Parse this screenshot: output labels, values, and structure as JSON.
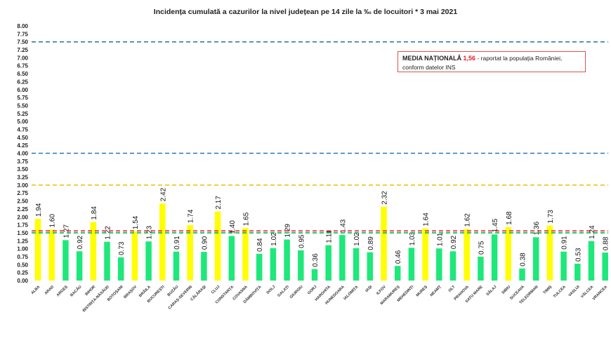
{
  "chart_data": {
    "type": "bar",
    "title": "Incidența cumulată a cazurilor la nivel județean pe 14 zile la ‰ de locuitori *   3 mai 2021",
    "xlabel": "",
    "ylabel": "",
    "ylim": [
      0,
      8
    ],
    "ytick_step": 0.25,
    "grid": false,
    "categories": [
      "ALBA",
      "ARAD",
      "ARGEȘ",
      "BACĂU",
      "BIHOR",
      "BISTRIȚA-NĂSĂUD",
      "BOTOȘANI",
      "BRAȘOV",
      "BRĂILA",
      "BUCUREȘTI",
      "BUZĂU",
      "CARAȘ-SEVERIN",
      "CĂLĂRAȘI",
      "CLUJ",
      "CONSTANȚA",
      "COVASNA",
      "DÂMBOVIȚA",
      "DOLJ",
      "GALAȚI",
      "GIURGIU",
      "GORJ",
      "HARGHITA",
      "HUNEDOARA",
      "IALOMIȚA",
      "IAȘI",
      "ILFOV",
      "MARAMUREȘ",
      "MEHEDINȚI",
      "MUREȘ",
      "NEAMȚ",
      "OLT",
      "PRAHOVA",
      "SATU MARE",
      "SĂLAJ",
      "SIBIU",
      "SUCEAVA",
      "TELEORMAN",
      "TIMIȘ",
      "TULCEA",
      "VASLUI",
      "VÂLCEA",
      "VRANCEA"
    ],
    "values": [
      1.94,
      1.6,
      1.27,
      0.92,
      1.84,
      1.22,
      0.73,
      1.54,
      1.23,
      2.42,
      0.91,
      1.74,
      0.9,
      2.17,
      1.4,
      1.65,
      0.84,
      1.02,
      1.29,
      0.95,
      0.36,
      1.11,
      1.43,
      1.02,
      0.89,
      2.32,
      0.46,
      1.03,
      1.64,
      1.01,
      0.92,
      1.62,
      0.75,
      1.45,
      1.68,
      0.38,
      1.36,
      1.73,
      0.91,
      0.53,
      1.24,
      0.88
    ],
    "value_labels": [
      "1.94",
      "1.60",
      "1.27",
      "0.92",
      "1.84",
      "1.22",
      "0.73",
      "1.54",
      "1.23",
      "2.42",
      "0.91",
      "1.74",
      "0.90",
      "2.17",
      "1.40",
      "1.65",
      "0.84",
      "1.02",
      "1.29",
      "0.95",
      "0.36",
      "1.11",
      "1.43",
      "1.02",
      "0.89",
      "2.32",
      "0.46",
      "1.03",
      "1.64",
      "1.01",
      "0.92",
      "1.62",
      "0.75",
      "1.45",
      "1.68",
      "0.38",
      "1.36",
      "1.73",
      "0.91",
      "0.53",
      "1.24",
      "0.88"
    ],
    "color_rule": {
      "threshold": 1.5,
      "above_color": "#FFFF00",
      "below_color": "#1EE87A"
    },
    "reference_lines": [
      {
        "value": 7.5,
        "color": "#2E75B6",
        "style": "dashed"
      },
      {
        "value": 4.0,
        "color": "#2E75B6",
        "style": "dashed"
      },
      {
        "value": 3.0,
        "color": "#E6C200",
        "style": "dashed"
      },
      {
        "value": 1.56,
        "color": "#E03030",
        "style": "dashed"
      },
      {
        "value": 1.5,
        "color": "#00B050",
        "style": "dashed"
      }
    ],
    "annotation": {
      "bold": "MEDIA NAȚIONALĂ",
      "value": "1,56",
      "rest": " - raportat la populația României,",
      "line2": "conform datelor INS"
    }
  }
}
